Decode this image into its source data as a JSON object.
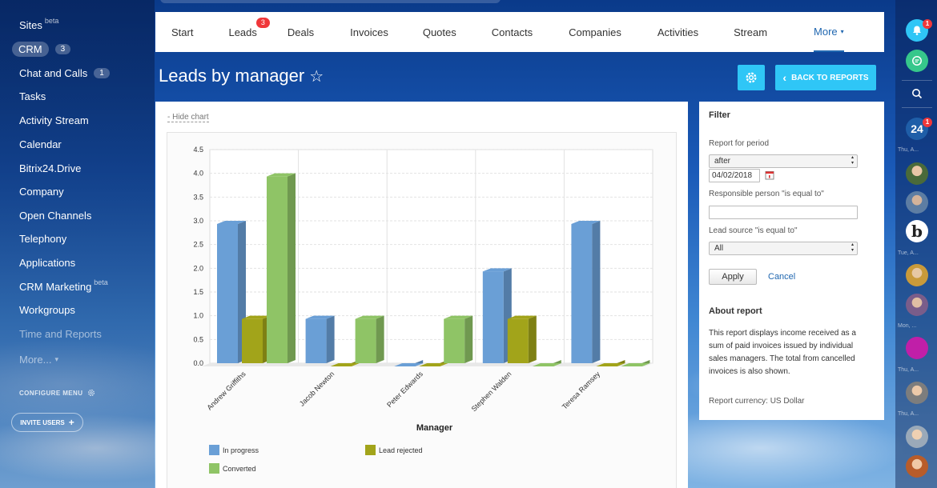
{
  "sidebar": {
    "items": [
      {
        "label": "Sites",
        "sup": "beta"
      },
      {
        "label": "CRM",
        "count": "3"
      },
      {
        "label": "Chat and Calls",
        "count": "1"
      },
      {
        "label": "Tasks"
      },
      {
        "label": "Activity Stream"
      },
      {
        "label": "Calendar"
      },
      {
        "label": "Bitrix24.Drive"
      },
      {
        "label": "Company"
      },
      {
        "label": "Open Channels"
      },
      {
        "label": "Telephony"
      },
      {
        "label": "Applications"
      },
      {
        "label": "CRM Marketing",
        "sup": "beta"
      },
      {
        "label": "Workgroups"
      },
      {
        "label": "Time and Reports"
      },
      {
        "label": "More...",
        "caret": "▾"
      }
    ],
    "configure_menu": "CONFIGURE MENU",
    "invite_users": "INVITE USERS",
    "invite_plus": "+"
  },
  "topnav": {
    "tabs": [
      {
        "label": "Start"
      },
      {
        "label": "Leads",
        "badge": "3"
      },
      {
        "label": "Deals"
      },
      {
        "label": "Invoices"
      },
      {
        "label": "Quotes"
      },
      {
        "label": "Contacts"
      },
      {
        "label": "Companies"
      },
      {
        "label": "Activities"
      },
      {
        "label": "Stream"
      },
      {
        "label": "More",
        "caret": "▾"
      }
    ]
  },
  "header": {
    "title": "Leads by manager",
    "star": "☆",
    "back_to_reports": "BACK TO REPORTS",
    "back_chevron": "‹"
  },
  "chart_panel": {
    "hide_chart": "- Hide chart"
  },
  "chart_data": {
    "type": "bar",
    "categories": [
      "Andrew Griffiths",
      "Jacob Newton",
      "Peter Edwards",
      "Stephen Walden",
      "Teresa Ramsey"
    ],
    "series": [
      {
        "name": "In progress",
        "color": "#6a9fd6",
        "values": [
          3,
          1,
          0,
          2,
          3
        ]
      },
      {
        "name": "Lead rejected",
        "color": "#a2a41a",
        "values": [
          1,
          0,
          0,
          1,
          0
        ]
      },
      {
        "name": "Converted",
        "color": "#8fc466",
        "values": [
          4,
          1,
          1,
          0,
          0
        ]
      }
    ],
    "xlabel": "Manager",
    "ylabel": "",
    "ylim": [
      0,
      4.5
    ],
    "yticks": [
      "0.0",
      "0.5",
      "1.0",
      "1.5",
      "2.0",
      "2.5",
      "3.0",
      "3.5",
      "4.0",
      "4.5"
    ],
    "grid": true,
    "legend": "bottom"
  },
  "filter": {
    "title": "Filter",
    "period_label": "Report for period",
    "period_value": "after",
    "date_value": "04/02/2018",
    "responsible_label": "Responsible person \"is equal to\"",
    "responsible_value": "",
    "source_label": "Lead source \"is equal to\"",
    "source_value": "All",
    "apply": "Apply",
    "cancel": "Cancel",
    "about_title": "About report",
    "about_text": "This report displays income received as a sum of paid invoices issued by individual sales managers. The total from cancelled invoices is also shown.",
    "currency": "Report currency: US Dollar"
  },
  "rightbar": {
    "notif_badge": "1",
    "b24_label": "24",
    "b24_badge": "1",
    "dates": [
      "Thu, A...",
      "Tue, A...",
      "Mon, ...",
      "Thu, A...",
      "Thu, A..."
    ],
    "b_letter": "b"
  }
}
